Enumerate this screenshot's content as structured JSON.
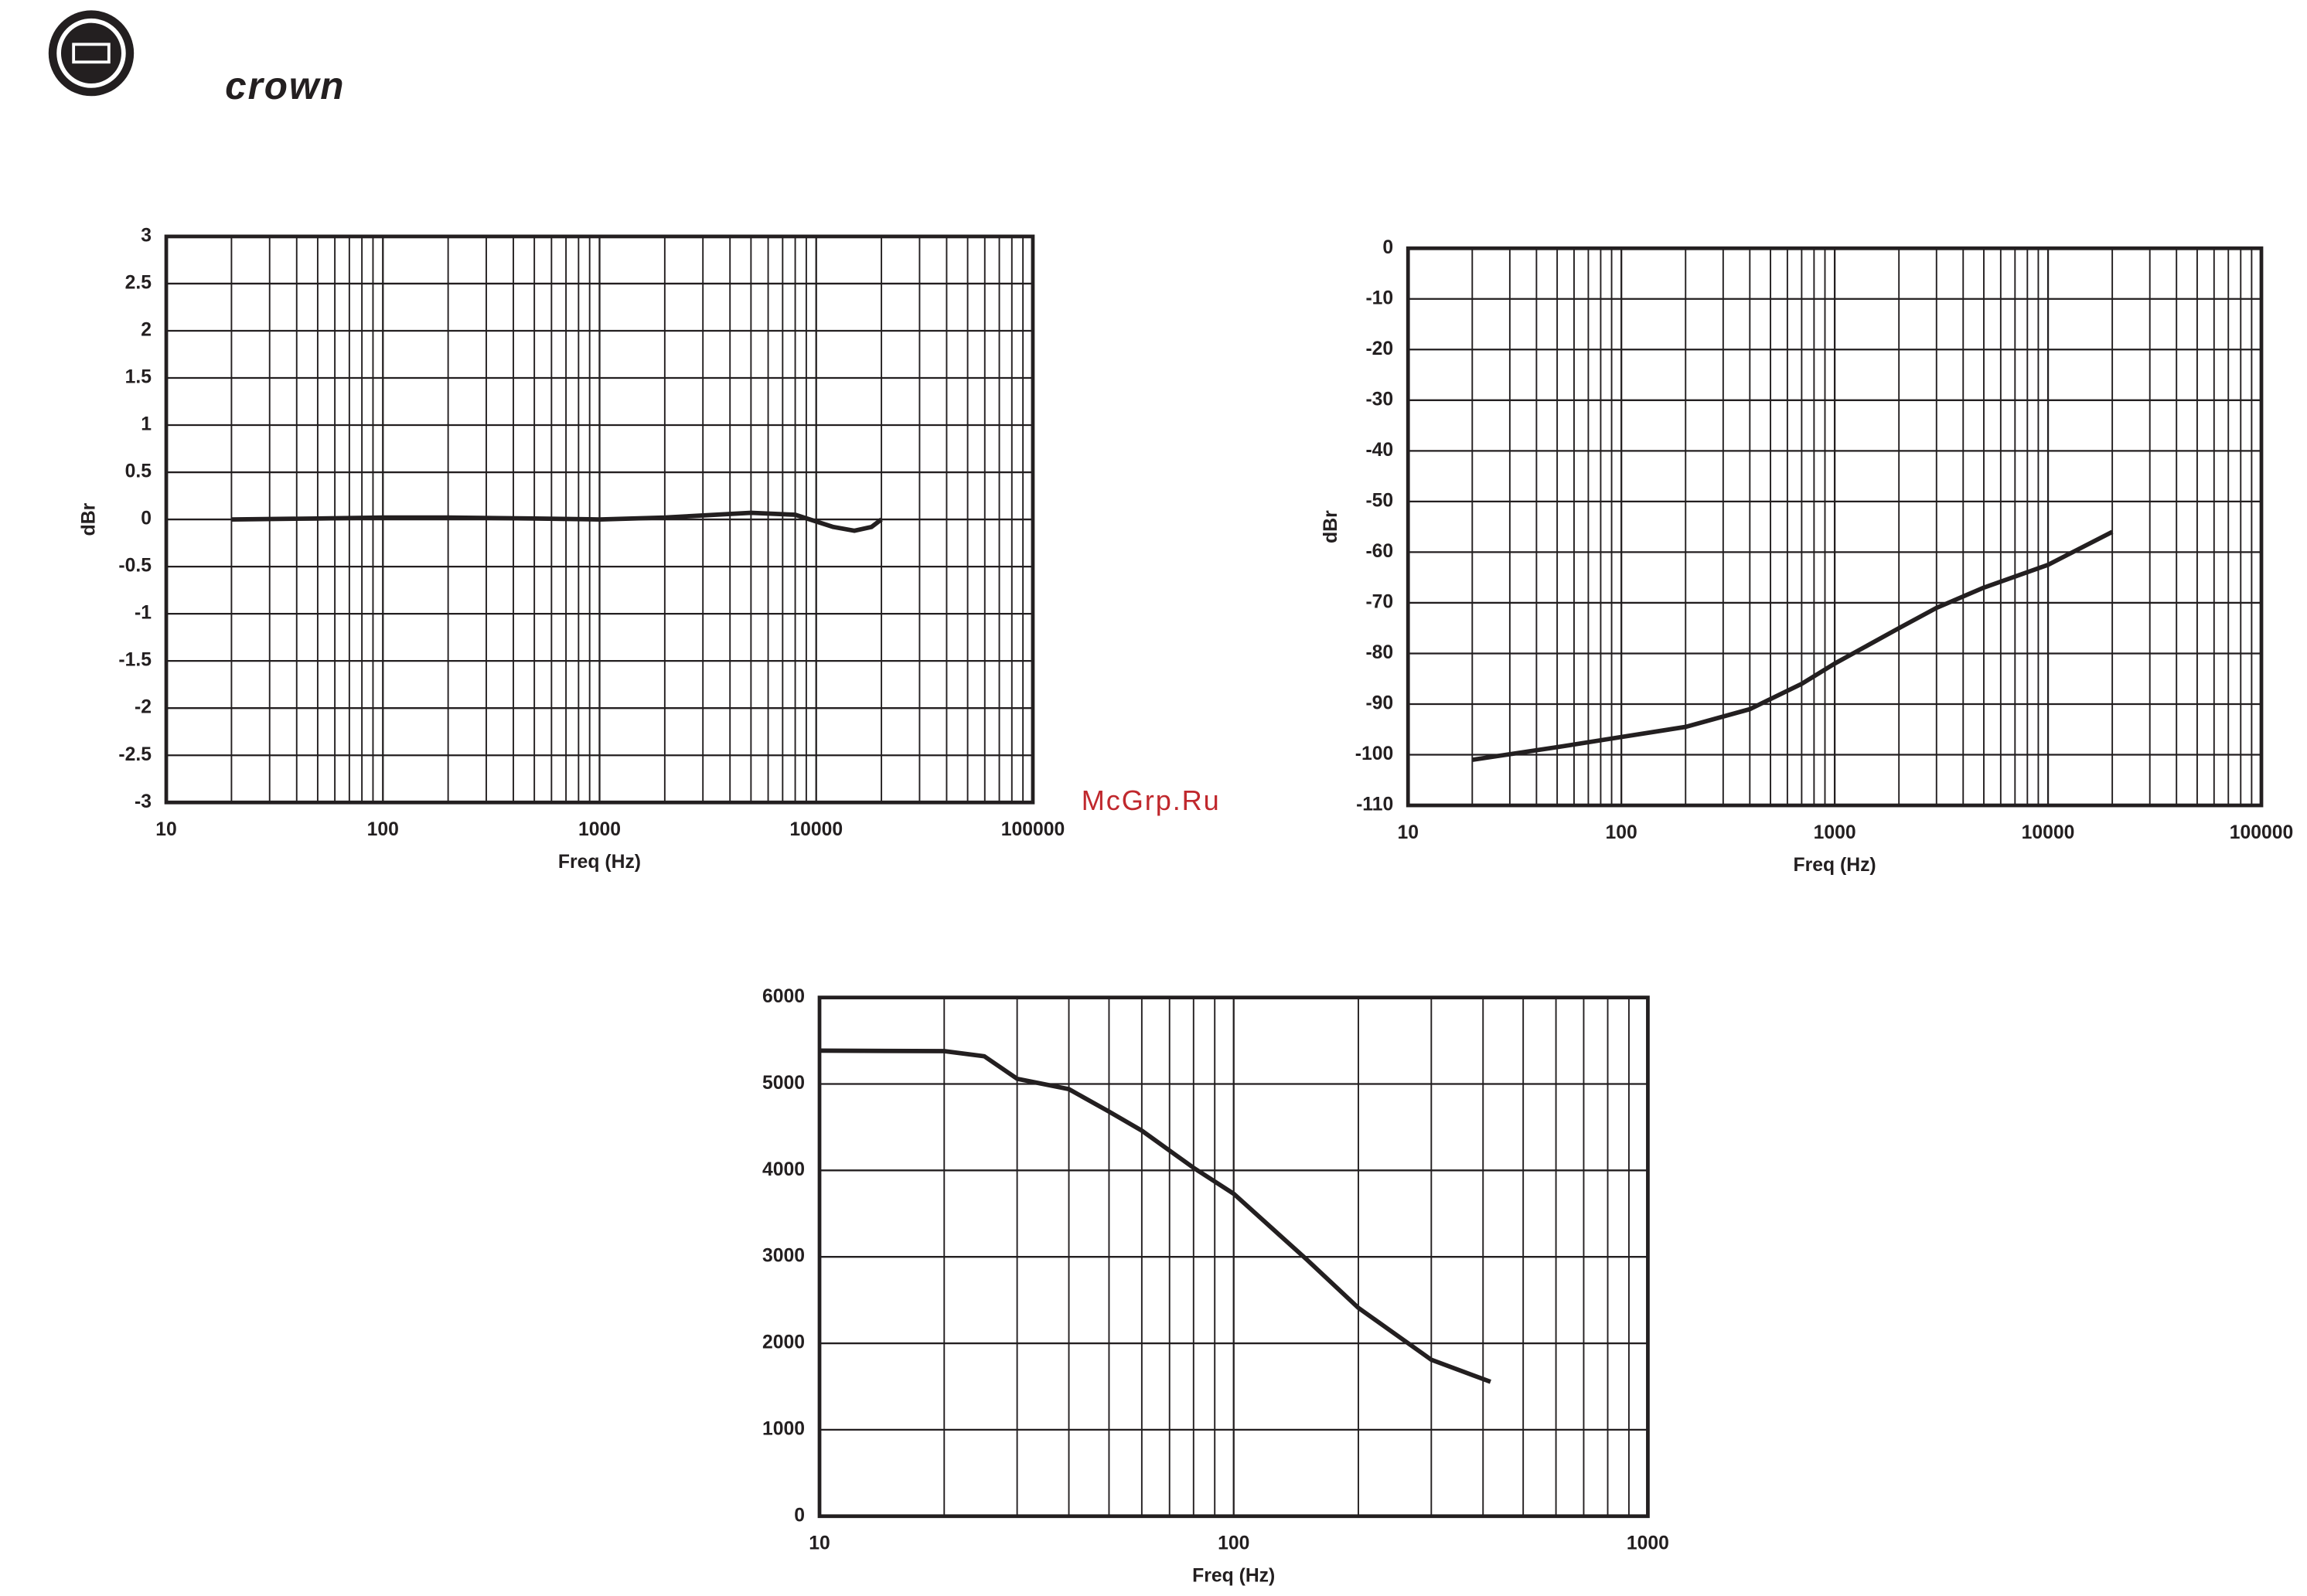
{
  "brand": "crown",
  "watermark": "McGrp.Ru",
  "chart_data": [
    {
      "type": "line",
      "xlabel": "Freq (Hz)",
      "ylabel": "dBr",
      "xscale": "log",
      "grid": true,
      "color": "#231f20",
      "x": [
        20,
        50,
        100,
        200,
        500,
        1000,
        2000,
        5000,
        8000,
        12000,
        15000,
        18000,
        20000
      ],
      "values": [
        0,
        0.01,
        0.02,
        0.02,
        0.01,
        0,
        0.02,
        0.07,
        0.05,
        -0.08,
        -0.12,
        -0.08,
        0
      ],
      "xlim": [
        10,
        100000
      ],
      "xticks": [
        10,
        100,
        1000,
        10000,
        100000
      ],
      "ylim": [
        -3,
        3
      ],
      "yticks": [
        3,
        2.5,
        2,
        1.5,
        1,
        0.5,
        0,
        -0.5,
        -1,
        -1.5,
        -2,
        -2.5,
        -3
      ]
    },
    {
      "type": "line",
      "xlabel": "Freq (Hz)",
      "ylabel": "dBr",
      "xscale": "log",
      "grid": true,
      "color": "#231f20",
      "x": [
        20,
        50,
        100,
        200,
        400,
        700,
        1000,
        2000,
        3000,
        5000,
        10000,
        20000
      ],
      "values": [
        -101,
        -98.5,
        -96.5,
        -94.5,
        -91,
        -86,
        -82,
        -75,
        -71,
        -67,
        -62.5,
        -56
      ],
      "xlim": [
        10,
        100000
      ],
      "xticks": [
        10,
        100,
        1000,
        10000,
        100000
      ],
      "ylim": [
        -110,
        0
      ],
      "yticks": [
        0,
        -10,
        -20,
        -30,
        -40,
        -50,
        -60,
        -70,
        -80,
        -90,
        -100,
        -110
      ]
    },
    {
      "type": "line",
      "xlabel": "Freq (Hz)",
      "xscale": "log",
      "grid": true,
      "color": "#231f20",
      "x": [
        10,
        20,
        25,
        30,
        40,
        50,
        60,
        80,
        100,
        150,
        200,
        300,
        417
      ],
      "values": [
        5385,
        5380,
        5320,
        5060,
        4940,
        4680,
        4460,
        4030,
        3730,
        2970,
        2410,
        1810,
        1555
      ],
      "xlim": [
        10,
        1000
      ],
      "xticks": [
        10,
        100,
        1000
      ],
      "ylim": [
        0,
        6000
      ],
      "yticks": [
        0,
        1000,
        2000,
        3000,
        4000,
        5000,
        6000
      ]
    }
  ]
}
